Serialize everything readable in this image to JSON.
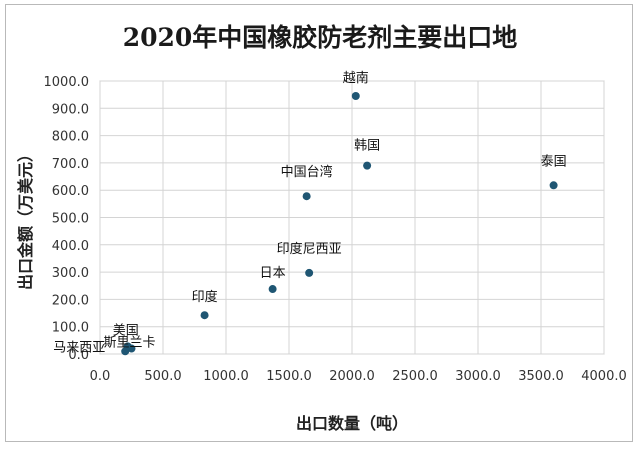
{
  "chart_data": {
    "type": "scatter",
    "title": "2020年中国橡胶防老剂主要出口地",
    "xlabel": "出口数量（吨）",
    "ylabel": "出口金额（万美元）",
    "xlim": [
      0,
      4000
    ],
    "ylim": [
      0,
      1000
    ],
    "xticks": [
      "0.0",
      "500.0",
      "1000.0",
      "1500.0",
      "2000.0",
      "2500.0",
      "3000.0",
      "3500.0",
      "4000.0"
    ],
    "yticks": [
      "0.0",
      "100.0",
      "200.0",
      "300.0",
      "400.0",
      "500.0",
      "600.0",
      "700.0",
      "800.0",
      "900.0",
      "1000.0"
    ],
    "grid": true,
    "marker_color": "#1f5673",
    "points": [
      {
        "label": "越南",
        "x": 2030,
        "y": 945
      },
      {
        "label": "韩国",
        "x": 2120,
        "y": 690
      },
      {
        "label": "泰国",
        "x": 3600,
        "y": 618
      },
      {
        "label": "中国台湾",
        "x": 1640,
        "y": 578
      },
      {
        "label": "印度尼西亚",
        "x": 1660,
        "y": 297
      },
      {
        "label": "日本",
        "x": 1370,
        "y": 238
      },
      {
        "label": "印度",
        "x": 830,
        "y": 142
      },
      {
        "label": "美国",
        "x": 220,
        "y": 28
      },
      {
        "label": "斯里兰卡",
        "x": 250,
        "y": 20
      },
      {
        "label": "马来西亚",
        "x": 200,
        "y": 10
      }
    ]
  }
}
